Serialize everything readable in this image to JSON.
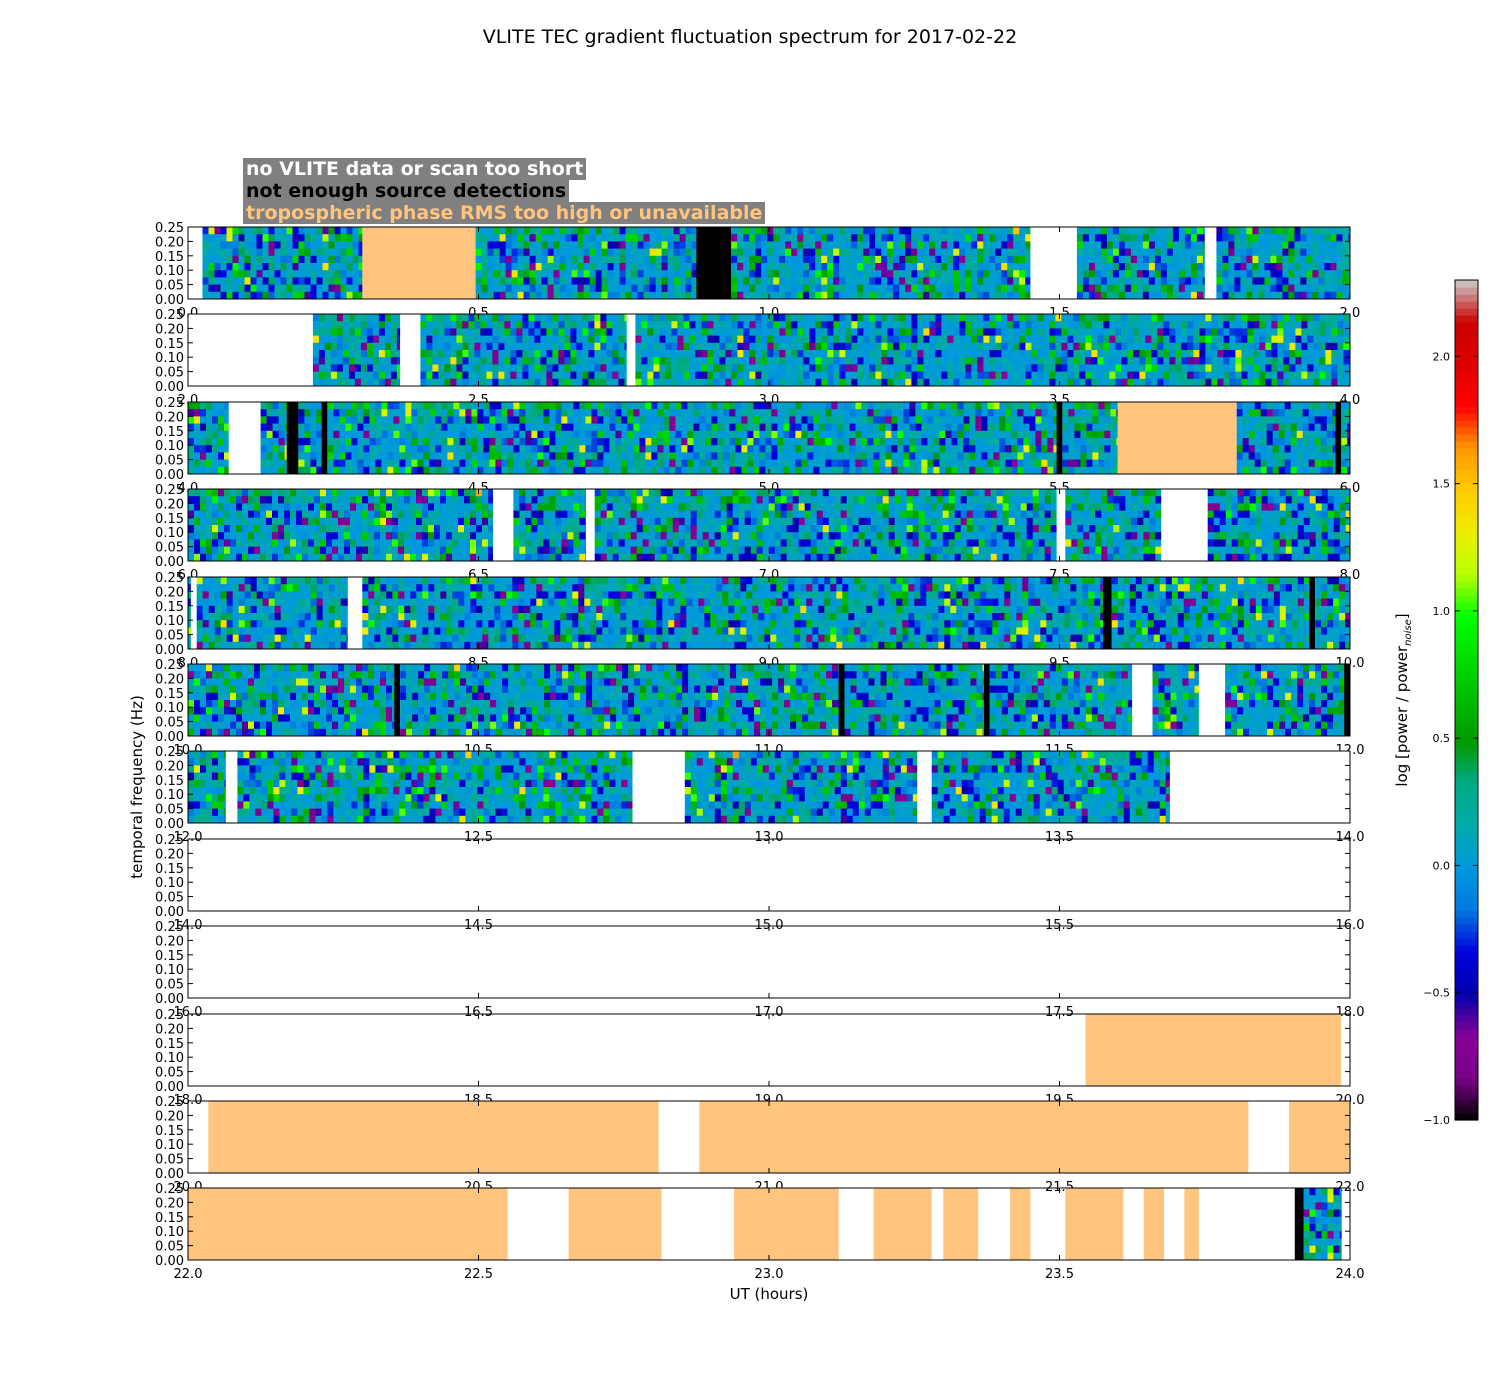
{
  "chart_data": {
    "type": "heatmap",
    "title": "VLITE TEC gradient fluctuation spectrum for 2017-02-22",
    "xlabel": "UT (hours)",
    "ylabel": "temporal frequency (Hz)",
    "colorbar_label": "log [power / power",
    "colorbar_label_sub": "noise",
    "colorbar_label_end": "]",
    "ylim": [
      0,
      0.25
    ],
    "y_ticks": [
      "0.00",
      "0.05",
      "0.10",
      "0.15",
      "0.20",
      "0.25"
    ],
    "clim": [
      -1.0,
      2.3
    ],
    "colorbar_ticks": [
      "−1.0",
      "−0.5",
      "0.0",
      "0.5",
      "1.0",
      "1.5",
      "2.0"
    ],
    "colorbar_tick_values": [
      -1.0,
      -0.5,
      0.0,
      0.5,
      1.0,
      1.5,
      2.0
    ],
    "colormap": "nipy_spectral",
    "legend": [
      {
        "label": "no VLITE data or scan too short",
        "color": "#ffffff"
      },
      {
        "label": "not enough source detections",
        "color": "#000000"
      },
      {
        "label": "tropospheric phase RMS too high or unavailable",
        "color": "#ffc57f"
      }
    ],
    "panels": [
      {
        "xlim": [
          0,
          2
        ],
        "xticks": [
          "0.0",
          "0.5",
          "1.0",
          "1.5",
          "2.0"
        ],
        "segments": [
          [
            0,
            0.025,
            "none"
          ],
          [
            0.025,
            0.3,
            "data"
          ],
          [
            0.3,
            0.495,
            "trop"
          ],
          [
            0.495,
            0.875,
            "data"
          ],
          [
            0.875,
            0.935,
            "nodet"
          ],
          [
            0.935,
            1.45,
            "data"
          ],
          [
            1.45,
            1.53,
            "none"
          ],
          [
            1.53,
            1.75,
            "data"
          ],
          [
            1.75,
            1.77,
            "none"
          ],
          [
            1.77,
            2.0,
            "data"
          ]
        ]
      },
      {
        "xlim": [
          2,
          4
        ],
        "xticks": [
          "2.0",
          "2.5",
          "3.0",
          "3.5",
          "4.0"
        ],
        "segments": [
          [
            2.0,
            2.215,
            "none"
          ],
          [
            2.215,
            2.365,
            "data"
          ],
          [
            2.365,
            2.4,
            "none"
          ],
          [
            2.4,
            2.755,
            "data"
          ],
          [
            2.755,
            2.77,
            "none"
          ],
          [
            2.77,
            4.0,
            "data"
          ]
        ]
      },
      {
        "xlim": [
          4,
          6
        ],
        "xticks": [
          "4.0",
          "4.5",
          "5.0",
          "5.5",
          "6.0"
        ],
        "segments": [
          [
            4.0,
            4.07,
            "data"
          ],
          [
            4.07,
            4.125,
            "none"
          ],
          [
            4.125,
            4.17,
            "data"
          ],
          [
            4.17,
            4.19,
            "nodet"
          ],
          [
            4.19,
            4.23,
            "data"
          ],
          [
            4.23,
            4.24,
            "nodet"
          ],
          [
            4.24,
            5.495,
            "data"
          ],
          [
            5.495,
            5.505,
            "nodet"
          ],
          [
            5.505,
            5.6,
            "data"
          ],
          [
            5.6,
            5.805,
            "trop"
          ],
          [
            5.805,
            5.975,
            "data"
          ],
          [
            5.975,
            5.985,
            "nodet"
          ],
          [
            5.985,
            6.0,
            "data"
          ]
        ]
      },
      {
        "xlim": [
          6,
          8
        ],
        "xticks": [
          "6.0",
          "6.5",
          "7.0",
          "7.5",
          "8.0"
        ],
        "segments": [
          [
            6.0,
            6.525,
            "data"
          ],
          [
            6.525,
            6.56,
            "none"
          ],
          [
            6.56,
            6.685,
            "data"
          ],
          [
            6.685,
            6.7,
            "none"
          ],
          [
            6.7,
            7.495,
            "data"
          ],
          [
            7.495,
            7.51,
            "none"
          ],
          [
            7.51,
            7.675,
            "data"
          ],
          [
            7.675,
            7.755,
            "none"
          ],
          [
            7.755,
            8.0,
            "data"
          ]
        ]
      },
      {
        "xlim": [
          8,
          10
        ],
        "xticks": [
          "8.0",
          "8.5",
          "9.0",
          "9.5",
          "10.0"
        ],
        "segments": [
          [
            8.0,
            8.005,
            "data"
          ],
          [
            8.005,
            8.015,
            "none"
          ],
          [
            8.015,
            8.275,
            "data"
          ],
          [
            8.275,
            8.3,
            "none"
          ],
          [
            8.3,
            9.575,
            "data"
          ],
          [
            9.575,
            9.59,
            "nodet"
          ],
          [
            9.59,
            9.93,
            "data"
          ],
          [
            9.93,
            9.94,
            "nodet"
          ],
          [
            9.94,
            10.0,
            "data"
          ]
        ]
      },
      {
        "xlim": [
          10,
          12
        ],
        "xticks": [
          "10.0",
          "10.5",
          "11.0",
          "11.5",
          "12.0"
        ],
        "segments": [
          [
            10.0,
            10.355,
            "data"
          ],
          [
            10.355,
            10.365,
            "nodet"
          ],
          [
            10.365,
            11.12,
            "data"
          ],
          [
            11.12,
            11.13,
            "nodet"
          ],
          [
            11.13,
            11.37,
            "data"
          ],
          [
            11.37,
            11.38,
            "nodet"
          ],
          [
            11.38,
            11.625,
            "data"
          ],
          [
            11.625,
            11.66,
            "none"
          ],
          [
            11.66,
            11.74,
            "data"
          ],
          [
            11.74,
            11.785,
            "none"
          ],
          [
            11.785,
            11.99,
            "data"
          ],
          [
            11.99,
            12.0,
            "nodet"
          ]
        ]
      },
      {
        "xlim": [
          12,
          14
        ],
        "xticks": [
          "12.0",
          "12.5",
          "13.0",
          "13.5",
          "14.0"
        ],
        "segments": [
          [
            12.0,
            12.065,
            "data"
          ],
          [
            12.065,
            12.085,
            "none"
          ],
          [
            12.085,
            12.765,
            "data"
          ],
          [
            12.765,
            12.855,
            "none"
          ],
          [
            12.855,
            13.255,
            "data"
          ],
          [
            13.255,
            13.28,
            "none"
          ],
          [
            13.28,
            13.69,
            "data"
          ],
          [
            13.69,
            14.0,
            "none"
          ]
        ]
      },
      {
        "xlim": [
          14,
          16
        ],
        "xticks": [
          "14.0",
          "14.5",
          "15.0",
          "15.5",
          "16.0"
        ],
        "segments": []
      },
      {
        "xlim": [
          16,
          18
        ],
        "xticks": [
          "16.0",
          "16.5",
          "17.0",
          "17.5",
          "18.0"
        ],
        "segments": []
      },
      {
        "xlim": [
          18,
          20
        ],
        "xticks": [
          "18.0",
          "18.5",
          "19.0",
          "19.5",
          "20.0"
        ],
        "segments": [
          [
            19.545,
            19.985,
            "trop"
          ]
        ]
      },
      {
        "xlim": [
          20,
          22
        ],
        "xticks": [
          "20.0",
          "20.5",
          "21.0",
          "21.5",
          "22.0"
        ],
        "segments": [
          [
            20.035,
            20.81,
            "trop"
          ],
          [
            20.88,
            21.825,
            "trop"
          ],
          [
            21.895,
            22.0,
            "trop"
          ]
        ]
      },
      {
        "xlim": [
          22,
          24
        ],
        "xticks": [
          "22.0",
          "22.5",
          "23.0",
          "23.5",
          "24.0"
        ],
        "segments": [
          [
            22.0,
            22.55,
            "trop"
          ],
          [
            22.655,
            22.815,
            "trop"
          ],
          [
            22.94,
            23.12,
            "trop"
          ],
          [
            23.18,
            23.28,
            "trop"
          ],
          [
            23.3,
            23.36,
            "trop"
          ],
          [
            23.415,
            23.45,
            "trop"
          ],
          [
            23.51,
            23.61,
            "trop"
          ],
          [
            23.645,
            23.68,
            "trop"
          ],
          [
            23.715,
            23.74,
            "trop"
          ],
          [
            23.905,
            23.92,
            "nodet"
          ],
          [
            23.92,
            23.985,
            "data"
          ]
        ]
      }
    ]
  }
}
